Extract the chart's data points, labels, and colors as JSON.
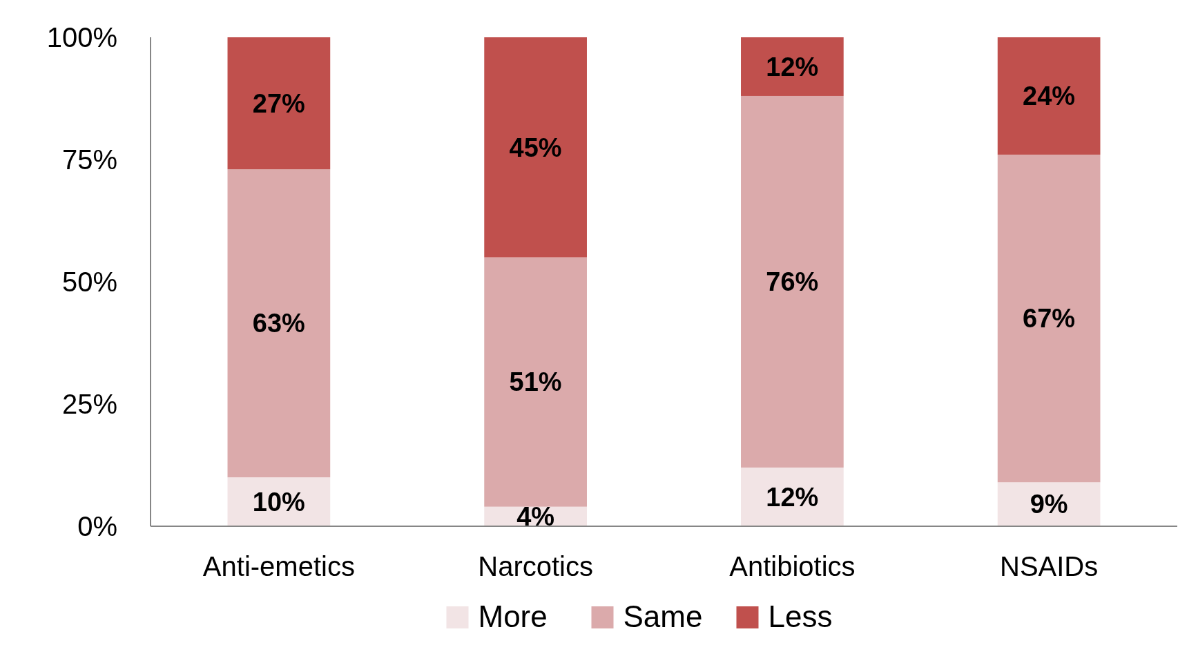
{
  "chart_data": {
    "type": "bar",
    "stacked": true,
    "categories": [
      "Anti-emetics",
      "Narcotics",
      "Antibiotics",
      "NSAIDs"
    ],
    "series": [
      {
        "name": "More",
        "color": "#f2e4e5",
        "values": [
          10,
          4,
          12,
          9
        ],
        "value_labels": [
          "10%",
          "4%",
          "12%",
          "9%"
        ]
      },
      {
        "name": "Same",
        "color": "#dbaaab",
        "values": [
          63,
          51,
          76,
          67
        ],
        "value_labels": [
          "63%",
          "51%",
          "76%",
          "67%"
        ]
      },
      {
        "name": "Less",
        "color": "#c0504d",
        "values": [
          27,
          45,
          12,
          24
        ],
        "value_labels": [
          "27%",
          "45%",
          "12%",
          "24%"
        ]
      }
    ],
    "ylim": [
      0,
      100
    ],
    "yticks": [
      {
        "value": 0,
        "label": "0%"
      },
      {
        "value": 25,
        "label": "25%"
      },
      {
        "value": 50,
        "label": "50%"
      },
      {
        "value": 75,
        "label": "75%"
      },
      {
        "value": 100,
        "label": "100%"
      }
    ],
    "grid": false,
    "legend": "bottom"
  }
}
